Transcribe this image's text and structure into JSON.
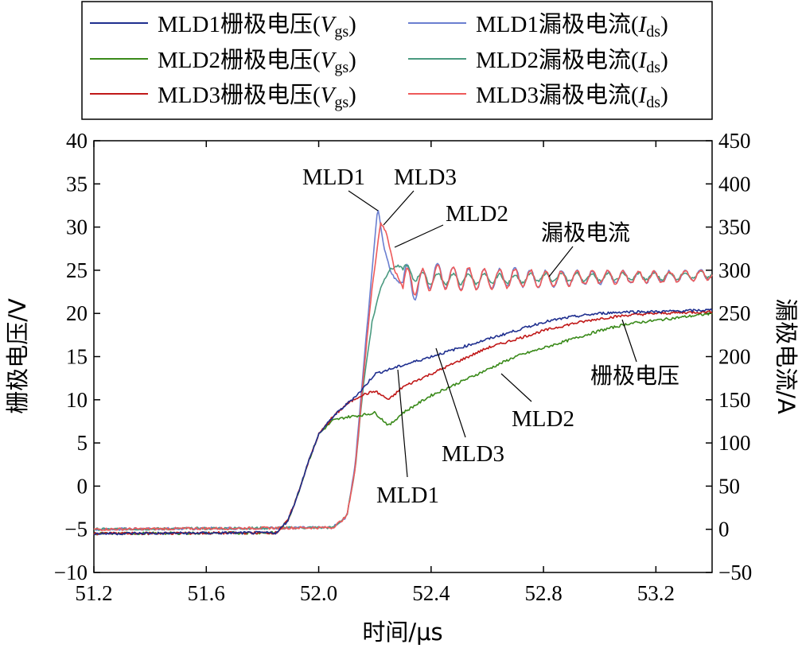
{
  "chart_data": {
    "type": "line",
    "xlabel": "时间/μs",
    "ylabel_left": "栅极电压/V",
    "ylabel_right": "漏极电流/A",
    "xlim": [
      51.2,
      53.4
    ],
    "ylim_left": [
      -10,
      40
    ],
    "ylim_right": [
      -50,
      450
    ],
    "x_ticks": [
      "51.2",
      "51.6",
      "52.0",
      "52.4",
      "52.8",
      "53.2"
    ],
    "x_tick_values": [
      51.2,
      51.6,
      52.0,
      52.4,
      52.8,
      53.2
    ],
    "y_left_ticks": [
      "−10",
      "−5",
      "0",
      "5",
      "10",
      "15",
      "20",
      "25",
      "30",
      "35",
      "40"
    ],
    "y_left_tick_values": [
      -10,
      -5,
      0,
      5,
      10,
      15,
      20,
      25,
      30,
      35,
      40
    ],
    "y_right_ticks": [
      "−50",
      "0",
      "50",
      "100",
      "150",
      "200",
      "250",
      "300",
      "350",
      "400",
      "450"
    ],
    "y_right_tick_values": [
      -50,
      0,
      50,
      100,
      150,
      200,
      250,
      300,
      350,
      400,
      450
    ],
    "legend": [
      {
        "prefix": "MLD1栅极电压(",
        "var": "V",
        "sub": "gs",
        "suffix": ")",
        "color": "#1f2f8f"
      },
      {
        "prefix": "MLD1漏极电流(",
        "var": "I",
        "sub": "ds",
        "suffix": ")",
        "color": "#6b7fd0"
      },
      {
        "prefix": "MLD2栅极电压(",
        "var": "V",
        "sub": "gs",
        "suffix": ")",
        "color": "#3a8a1a"
      },
      {
        "prefix": "MLD2漏极电流(",
        "var": "I",
        "sub": "ds",
        "suffix": ")",
        "color": "#4a9a80"
      },
      {
        "prefix": "MLD3栅极电压(",
        "var": "V",
        "sub": "gs",
        "suffix": ")",
        "color": "#c01818"
      },
      {
        "prefix": "MLD3漏极电流(",
        "var": "I",
        "sub": "ds",
        "suffix": ")",
        "color": "#ee5a5a"
      }
    ],
    "annotations": {
      "current_mld1": "MLD1",
      "current_mld3": "MLD3",
      "current_mld2": "MLD2",
      "current_label": "漏极电流",
      "gate_label": "栅极电压",
      "gate_mld2": "MLD2",
      "gate_mld3": "MLD3",
      "gate_mld1": "MLD1"
    },
    "series": [
      {
        "name": "MLD1栅极电压",
        "axis": "left",
        "color": "#1f2f8f",
        "x": [
          51.2,
          51.85,
          51.89,
          51.92,
          51.96,
          52.0,
          52.05,
          52.1,
          52.15,
          52.2,
          52.3,
          52.4,
          52.5,
          52.6,
          52.7,
          52.8,
          52.9,
          53.0,
          53.1,
          53.2,
          53.3,
          53.4
        ],
        "y": [
          -5.5,
          -5.4,
          -4.0,
          -1.5,
          2.5,
          6.0,
          8.0,
          9.5,
          11.0,
          13.0,
          14.0,
          15.0,
          16.0,
          17.0,
          18.0,
          19.0,
          19.6,
          20.0,
          20.2,
          20.2,
          20.3,
          20.4
        ]
      },
      {
        "name": "MLD1漏极电流",
        "axis": "right",
        "color": "#6b7fd0",
        "x": [
          51.2,
          52.05,
          52.1,
          52.13,
          52.16,
          52.19,
          52.21,
          52.23,
          52.26,
          52.29,
          52.32,
          52.35,
          52.4,
          52.5,
          52.6,
          52.7,
          52.8,
          53.0,
          53.2,
          53.4
        ],
        "y": [
          0,
          2,
          15,
          75,
          190,
          300,
          375,
          330,
          295,
          285,
          290,
          280,
          295,
          290,
          290,
          292,
          290,
          292,
          292,
          295
        ]
      },
      {
        "name": "MLD2栅极电压",
        "axis": "left",
        "color": "#3a8a1a",
        "x": [
          51.2,
          51.85,
          51.89,
          51.92,
          51.96,
          52.0,
          52.05,
          52.1,
          52.15,
          52.2,
          52.25,
          52.3,
          52.4,
          52.5,
          52.6,
          52.7,
          52.8,
          52.9,
          53.0,
          53.1,
          53.2,
          53.3,
          53.4
        ],
        "y": [
          -5.5,
          -5.4,
          -4.0,
          -1.5,
          2.5,
          6.0,
          7.6,
          8.0,
          8.2,
          8.5,
          7.0,
          8.5,
          10.5,
          12.0,
          13.5,
          15.0,
          16.0,
          17.0,
          18.0,
          18.8,
          19.2,
          19.6,
          20.0
        ]
      },
      {
        "name": "MLD2漏极电流",
        "axis": "right",
        "color": "#4a9a80",
        "x": [
          51.2,
          52.05,
          52.1,
          52.13,
          52.16,
          52.19,
          52.22,
          52.25,
          52.28,
          52.32,
          52.36,
          52.4,
          52.5,
          52.6,
          52.7,
          52.8,
          53.0,
          53.2,
          53.4
        ],
        "y": [
          0,
          2,
          15,
          70,
          170,
          240,
          280,
          300,
          305,
          298,
          292,
          290,
          290,
          290,
          290,
          292,
          292,
          293,
          295
        ]
      },
      {
        "name": "MLD3栅极电压",
        "axis": "left",
        "color": "#c01818",
        "x": [
          51.2,
          51.85,
          51.89,
          51.92,
          51.96,
          52.0,
          52.05,
          52.1,
          52.15,
          52.2,
          52.25,
          52.3,
          52.4,
          52.5,
          52.6,
          52.7,
          52.8,
          52.9,
          53.0,
          53.1,
          53.2,
          53.3,
          53.4
        ],
        "y": [
          -5.5,
          -5.4,
          -4.0,
          -1.5,
          2.5,
          6.0,
          8.0,
          9.5,
          10.5,
          11.0,
          10.0,
          11.5,
          13.0,
          14.5,
          16.0,
          17.0,
          18.0,
          18.8,
          19.4,
          19.8,
          20.0,
          20.1,
          20.2
        ]
      },
      {
        "name": "MLD3漏极电流",
        "axis": "right",
        "color": "#ee5a5a",
        "x": [
          51.2,
          52.05,
          52.1,
          52.13,
          52.16,
          52.19,
          52.22,
          52.24,
          52.27,
          52.3,
          52.33,
          52.36,
          52.4,
          52.5,
          52.6,
          52.7,
          52.8,
          53.0,
          53.2,
          53.4
        ],
        "y": [
          0,
          2,
          15,
          70,
          180,
          280,
          355,
          345,
          300,
          280,
          292,
          283,
          293,
          290,
          290,
          291,
          290,
          292,
          292,
          295
        ]
      }
    ]
  }
}
